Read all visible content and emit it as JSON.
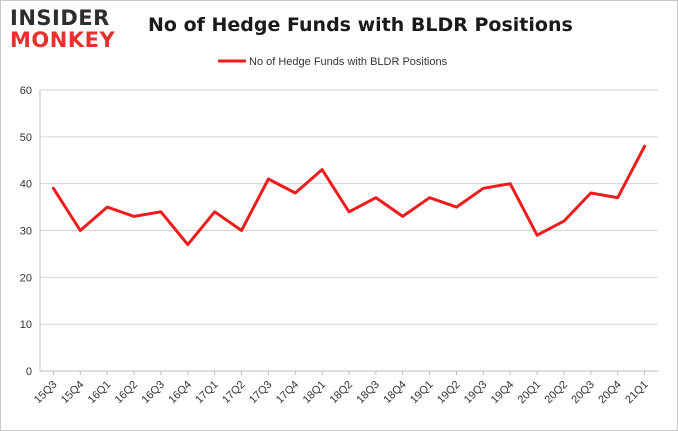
{
  "logo": {
    "line1": "INSIDER",
    "line2": "MONKEY"
  },
  "chart_data": {
    "type": "line",
    "title": "No of Hedge Funds with BLDR Positions",
    "xlabel": "",
    "ylabel": "",
    "categories": [
      "15Q3",
      "15Q4",
      "16Q1",
      "16Q2",
      "16Q3",
      "16Q4",
      "17Q1",
      "17Q2",
      "17Q3",
      "17Q4",
      "18Q1",
      "18Q2",
      "18Q3",
      "18Q4",
      "19Q1",
      "19Q2",
      "19Q3",
      "19Q4",
      "20Q1",
      "20Q2",
      "20Q3",
      "20Q4",
      "21Q1"
    ],
    "series": [
      {
        "name": "No of Hedge Funds with BLDR Positions",
        "color": "#ee1c1c",
        "values": [
          39,
          30,
          35,
          33,
          34,
          27,
          34,
          30,
          41,
          38,
          43,
          34,
          37,
          33,
          37,
          35,
          39,
          40,
          29,
          32,
          38,
          37,
          48
        ]
      }
    ],
    "ylim": [
      0,
      60
    ],
    "yticks": [
      0,
      10,
      20,
      30,
      40,
      50,
      60
    ],
    "grid": true,
    "legend": "top-center"
  }
}
